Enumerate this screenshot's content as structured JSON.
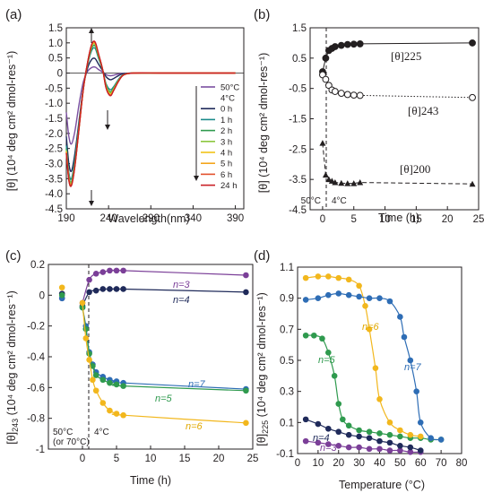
{
  "chart_data": [
    {
      "panel": "(a)",
      "type": "line",
      "xlabel": "Wavelength(nm)",
      "ylabel": "[θ] (10⁴ deg cm² dmol-res⁻¹)",
      "xlim": [
        190,
        400
      ],
      "ylim": [
        -4.5,
        1.5
      ],
      "xticks": [
        "190",
        "240",
        "290",
        "340",
        "390"
      ],
      "yticks": [
        "-4.5",
        "-4.0",
        "-3.5",
        "-3.0",
        "-2.5",
        "-2.0",
        "-1.5",
        "-1.0",
        "-0.5",
        "0",
        "0.5",
        "1.0",
        "1.5"
      ],
      "legend_position": "right",
      "legend_extra": "4°C",
      "series": [
        {
          "name": "50°C",
          "color": "#7b4fa0",
          "x": [
            190,
            193,
            196,
            200,
            205,
            210,
            215,
            220,
            224,
            228,
            233,
            237,
            242,
            246,
            252,
            258,
            270,
            300,
            330,
            360,
            390
          ],
          "y": [
            -1.3,
            -2.1,
            -2.35,
            -1.95,
            -1.05,
            -0.3,
            0.05,
            0.18,
            0.2,
            0.12,
            0.03,
            -0.05,
            -0.09,
            -0.07,
            -0.03,
            -0.01,
            0,
            0,
            0,
            0,
            0
          ]
        },
        {
          "name": "0 h",
          "color": "#1f2a5a",
          "x": [
            190,
            193,
            196,
            200,
            205,
            210,
            215,
            220,
            224,
            228,
            233,
            237,
            242,
            246,
            252,
            258,
            270,
            300,
            330,
            360,
            390
          ],
          "y": [
            -2.1,
            -3.0,
            -3.25,
            -2.7,
            -1.6,
            -0.5,
            0.15,
            0.45,
            0.48,
            0.3,
            0.08,
            -0.12,
            -0.22,
            -0.18,
            -0.08,
            -0.02,
            0,
            0,
            0,
            0,
            0
          ]
        },
        {
          "name": "1 h",
          "color": "#1a8a8a",
          "x": [
            190,
            193,
            196,
            200,
            205,
            210,
            215,
            220,
            224,
            228,
            233,
            237,
            242,
            246,
            252,
            258,
            270,
            300,
            330,
            360,
            390
          ],
          "y": [
            -2.4,
            -3.3,
            -3.5,
            -2.9,
            -1.7,
            -0.5,
            0.25,
            0.75,
            0.82,
            0.5,
            0.1,
            -0.35,
            -0.55,
            -0.45,
            -0.2,
            -0.05,
            0,
            0,
            0,
            0,
            0
          ]
        },
        {
          "name": "2 h",
          "color": "#2f9a4e",
          "x": [
            190,
            193,
            196,
            200,
            205,
            210,
            215,
            220,
            224,
            228,
            233,
            237,
            242,
            246,
            252,
            258,
            270,
            300,
            330,
            360,
            390
          ],
          "y": [
            -2.5,
            -3.4,
            -3.6,
            -3.0,
            -1.8,
            -0.55,
            0.3,
            0.82,
            0.9,
            0.55,
            0.1,
            -0.4,
            -0.62,
            -0.5,
            -0.22,
            -0.05,
            0,
            0,
            0,
            0,
            0
          ]
        },
        {
          "name": "3 h",
          "color": "#8cc63e",
          "x": [
            190,
            193,
            196,
            200,
            205,
            210,
            215,
            220,
            224,
            228,
            233,
            237,
            242,
            246,
            252,
            258,
            270,
            300,
            330,
            360,
            390
          ],
          "y": [
            -2.55,
            -3.45,
            -3.65,
            -3.05,
            -1.8,
            -0.55,
            0.3,
            0.88,
            0.95,
            0.6,
            0.12,
            -0.42,
            -0.66,
            -0.52,
            -0.24,
            -0.06,
            0,
            0,
            0,
            0,
            0
          ]
        },
        {
          "name": "4 h",
          "color": "#f2c317",
          "x": [
            190,
            193,
            196,
            200,
            205,
            210,
            215,
            220,
            224,
            228,
            233,
            237,
            242,
            246,
            252,
            258,
            270,
            300,
            330,
            360,
            390
          ],
          "y": [
            -2.6,
            -3.5,
            -3.7,
            -3.1,
            -1.85,
            -0.55,
            0.3,
            0.9,
            0.98,
            0.62,
            0.12,
            -0.45,
            -0.7,
            -0.55,
            -0.25,
            -0.06,
            0,
            0,
            0,
            0,
            0
          ]
        },
        {
          "name": "5 h",
          "color": "#f4a51c",
          "x": [
            190,
            193,
            196,
            200,
            205,
            210,
            215,
            220,
            224,
            228,
            233,
            237,
            242,
            246,
            252,
            258,
            270,
            300,
            330,
            360,
            390
          ],
          "y": [
            -2.6,
            -3.5,
            -3.7,
            -3.1,
            -1.85,
            -0.55,
            0.32,
            0.92,
            1.0,
            0.63,
            0.12,
            -0.47,
            -0.72,
            -0.56,
            -0.25,
            -0.06,
            0,
            0,
            0,
            0,
            0
          ]
        },
        {
          "name": "6 h",
          "color": "#e2502b",
          "x": [
            190,
            193,
            196,
            200,
            205,
            210,
            215,
            220,
            224,
            228,
            233,
            237,
            242,
            246,
            252,
            258,
            270,
            300,
            330,
            360,
            390
          ],
          "y": [
            -2.65,
            -3.55,
            -3.72,
            -3.12,
            -1.85,
            -0.55,
            0.32,
            0.94,
            1.02,
            0.64,
            0.12,
            -0.48,
            -0.74,
            -0.57,
            -0.26,
            -0.06,
            0,
            0,
            0,
            0,
            0
          ]
        },
        {
          "name": "24 h",
          "color": "#c91f25",
          "x": [
            190,
            193,
            196,
            200,
            205,
            210,
            215,
            220,
            224,
            228,
            233,
            237,
            242,
            246,
            252,
            258,
            270,
            300,
            330,
            360,
            390
          ],
          "y": [
            -2.65,
            -3.55,
            -3.73,
            -3.12,
            -1.85,
            -0.55,
            0.33,
            0.95,
            1.03,
            0.65,
            0.12,
            -0.49,
            -0.75,
            -0.58,
            -0.26,
            -0.06,
            0,
            0,
            0,
            0,
            0
          ]
        }
      ]
    },
    {
      "panel": "(b)",
      "type": "line",
      "xlabel": "Time (h)",
      "ylabel": "[θ] (10⁴ deg cm² dmol-res⁻¹)",
      "xlim": [
        -2,
        25
      ],
      "ylim": [
        -4.5,
        1.5
      ],
      "xticks": [
        "0",
        "5",
        "10",
        "15",
        "20",
        "25"
      ],
      "yticks": [
        "-4.5",
        "-3.5",
        "-2.5",
        "-1.5",
        "-0.5",
        "0.5",
        "1.5"
      ],
      "annotations": [
        "50°C",
        "4°C"
      ],
      "series": [
        {
          "name": "[θ]225",
          "marker": "filled-circle",
          "line": "solid",
          "x": [
            0,
            0.5,
            1,
            1.5,
            2,
            3,
            4,
            5,
            6,
            24
          ],
          "y": [
            0.05,
            0.5,
            0.75,
            0.82,
            0.88,
            0.92,
            0.95,
            0.96,
            0.97,
            1.0
          ]
        },
        {
          "name": "[θ]243",
          "marker": "open-circle",
          "line": "dotted",
          "x": [
            0,
            0.5,
            1,
            1.5,
            2,
            3,
            4,
            5,
            6,
            24
          ],
          "y": [
            -0.05,
            -0.2,
            -0.4,
            -0.55,
            -0.6,
            -0.66,
            -0.7,
            -0.72,
            -0.73,
            -0.8
          ]
        },
        {
          "name": "[θ]200",
          "marker": "filled-triangle",
          "line": "dashed",
          "x": [
            0,
            0.5,
            1,
            1.5,
            2,
            3,
            4,
            5,
            6,
            24
          ],
          "y": [
            -2.3,
            -3.35,
            -3.5,
            -3.55,
            -3.6,
            -3.62,
            -3.63,
            -3.63,
            -3.6,
            -3.65
          ]
        }
      ]
    },
    {
      "panel": "(c)",
      "type": "scatter",
      "xlabel": "Time (h)",
      "ylabel": "[θ]243 (10⁴ deg cm² dmol-res⁻¹)",
      "ylabel_main": "[θ]",
      "ylabel_sub": "243",
      "ylabel_rest": " (10⁴ deg cm² dmol-res⁻¹)",
      "xlim": [
        -5,
        25
      ],
      "ylim": [
        -1,
        0.2
      ],
      "xticks": [
        "0",
        "5",
        "10",
        "15",
        "20",
        "25"
      ],
      "yticks": [
        "-1",
        "-0.8",
        "-0.6",
        "-0.4",
        "-0.2",
        "0",
        "0.2"
      ],
      "annotations": [
        "50°C",
        "(or 70°C)",
        "4°C"
      ],
      "series": [
        {
          "name": "n=3",
          "color": "#7b3f98",
          "x": [
            -3,
            0,
            1,
            2,
            3,
            4,
            5,
            6,
            24
          ],
          "y": [
            -0.02,
            -0.05,
            0.1,
            0.14,
            0.15,
            0.16,
            0.16,
            0.16,
            0.13
          ]
        },
        {
          "name": "n=4",
          "color": "#1f2a5a",
          "x": [
            -3,
            0,
            1,
            2,
            3,
            4,
            5,
            6,
            24
          ],
          "y": [
            0.01,
            -0.07,
            0.02,
            0.03,
            0.04,
            0.04,
            0.04,
            0.04,
            0.02
          ]
        },
        {
          "name": "n=7",
          "color": "#2e6db5",
          "x": [
            -3,
            0,
            0.5,
            1,
            1.5,
            2,
            3,
            4,
            5,
            6,
            24
          ],
          "y": [
            -0.02,
            -0.08,
            -0.2,
            -0.37,
            -0.45,
            -0.5,
            -0.53,
            -0.55,
            -0.56,
            -0.57,
            -0.61
          ]
        },
        {
          "name": "n=5",
          "color": "#2f9a4e",
          "x": [
            -3,
            0,
            0.5,
            1,
            1.5,
            2,
            3,
            4,
            5,
            6,
            24
          ],
          "y": [
            0.0,
            -0.08,
            -0.22,
            -0.38,
            -0.46,
            -0.52,
            -0.55,
            -0.57,
            -0.58,
            -0.59,
            -0.62
          ]
        },
        {
          "name": "n=6",
          "color": "#f2b71d",
          "x": [
            -3,
            0,
            0.5,
            1,
            1.5,
            2,
            3,
            4,
            5,
            6,
            24
          ],
          "y": [
            0.05,
            -0.05,
            -0.28,
            -0.42,
            -0.55,
            -0.62,
            -0.7,
            -0.75,
            -0.77,
            -0.78,
            -0.83
          ]
        }
      ]
    },
    {
      "panel": "(d)",
      "type": "scatter",
      "xlabel": "Temperature (°C)",
      "ylabel": "[θ]225 (10⁴ deg cm² dmol-res⁻¹)",
      "ylabel_main": "[θ]",
      "ylabel_sub": "225",
      "ylabel_rest": " (10⁴ deg cm² dmol-res⁻¹)",
      "xlim": [
        0,
        80
      ],
      "ylim": [
        -0.1,
        1.1
      ],
      "xticks": [
        "0",
        "10",
        "20",
        "30",
        "40",
        "50",
        "60",
        "70",
        "80"
      ],
      "yticks": [
        "-0.1",
        "0.1",
        "0.3",
        "0.5",
        "0.7",
        "0.9",
        "1.1"
      ],
      "series": [
        {
          "name": "n=3",
          "color": "#7b3f98",
          "x": [
            4,
            10,
            15,
            20,
            25,
            30,
            35,
            40,
            45,
            50,
            55,
            60
          ],
          "y": [
            -0.02,
            -0.03,
            -0.04,
            -0.05,
            -0.06,
            -0.06,
            -0.07,
            -0.07,
            -0.08,
            -0.08,
            -0.09,
            -0.09
          ]
        },
        {
          "name": "n=4",
          "color": "#1f2a5a",
          "x": [
            4,
            10,
            15,
            20,
            25,
            30,
            35,
            40,
            45,
            50,
            55,
            60
          ],
          "y": [
            0.12,
            0.09,
            0.06,
            0.04,
            0.02,
            0.01,
            0.0,
            -0.02,
            -0.03,
            -0.05,
            -0.06,
            -0.08
          ]
        },
        {
          "name": "n=5",
          "color": "#2f9a4e",
          "x": [
            4,
            8,
            12,
            15,
            18,
            20,
            22,
            25,
            30,
            35,
            40,
            45,
            50,
            55,
            60,
            65,
            70
          ],
          "y": [
            0.66,
            0.66,
            0.64,
            0.55,
            0.4,
            0.22,
            0.12,
            0.08,
            0.05,
            0.04,
            0.03,
            0.02,
            0.01,
            0.0,
            0.0,
            -0.01,
            -0.01
          ]
        },
        {
          "name": "n=6",
          "color": "#f2b71d",
          "x": [
            4,
            10,
            15,
            20,
            25,
            30,
            33,
            35,
            38,
            40,
            45,
            50,
            55,
            60
          ],
          "y": [
            1.03,
            1.04,
            1.04,
            1.03,
            1.02,
            0.98,
            0.85,
            0.7,
            0.45,
            0.25,
            0.1,
            0.05,
            0.02,
            0.01
          ]
        },
        {
          "name": "n=7",
          "color": "#2e6db5",
          "x": [
            4,
            10,
            15,
            20,
            25,
            30,
            35,
            40,
            45,
            50,
            52,
            55,
            58,
            60,
            65,
            70
          ],
          "y": [
            0.89,
            0.9,
            0.92,
            0.93,
            0.92,
            0.91,
            0.9,
            0.9,
            0.88,
            0.78,
            0.65,
            0.5,
            0.3,
            0.1,
            0.0,
            -0.01
          ]
        }
      ]
    }
  ]
}
